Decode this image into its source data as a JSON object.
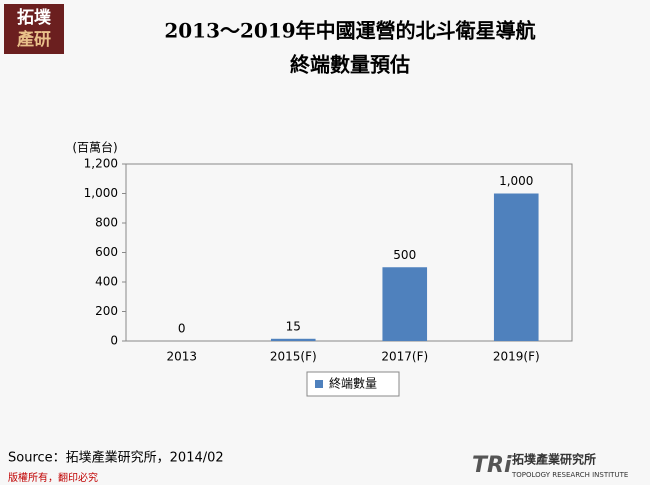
{
  "logo": {
    "line1": "拓墣",
    "line2": "產研"
  },
  "chart_data": {
    "type": "bar",
    "title": "2013～2019年中國運營的北斗衛星導航",
    "subtitle": "終端數量預估",
    "y_label": "(百萬台)",
    "categories": [
      "2013",
      "2015(F)",
      "2017(F)",
      "2019(F)"
    ],
    "series": [
      {
        "name": "終端數量",
        "color": "#4f81bd",
        "values": [
          0,
          15,
          500,
          1000
        ],
        "value_labels": [
          "0",
          "15",
          "500",
          "1,000"
        ]
      }
    ],
    "ylim": [
      0,
      1200
    ],
    "yticks": [
      0,
      200,
      400,
      600,
      800,
      {
        "value": 1000,
        "label": "1,000"
      },
      {
        "value": 1200,
        "label": "1,200"
      }
    ],
    "grid": false,
    "legend": "bottom"
  },
  "source": "Source：拓墣產業研究所，2014/02",
  "footer": "版權所有，翻印必究",
  "brand": {
    "mark": "TRi",
    "name": "拓墣產業研究所",
    "english": "TOPOLOGY RESEARCH INSTITUTE"
  }
}
